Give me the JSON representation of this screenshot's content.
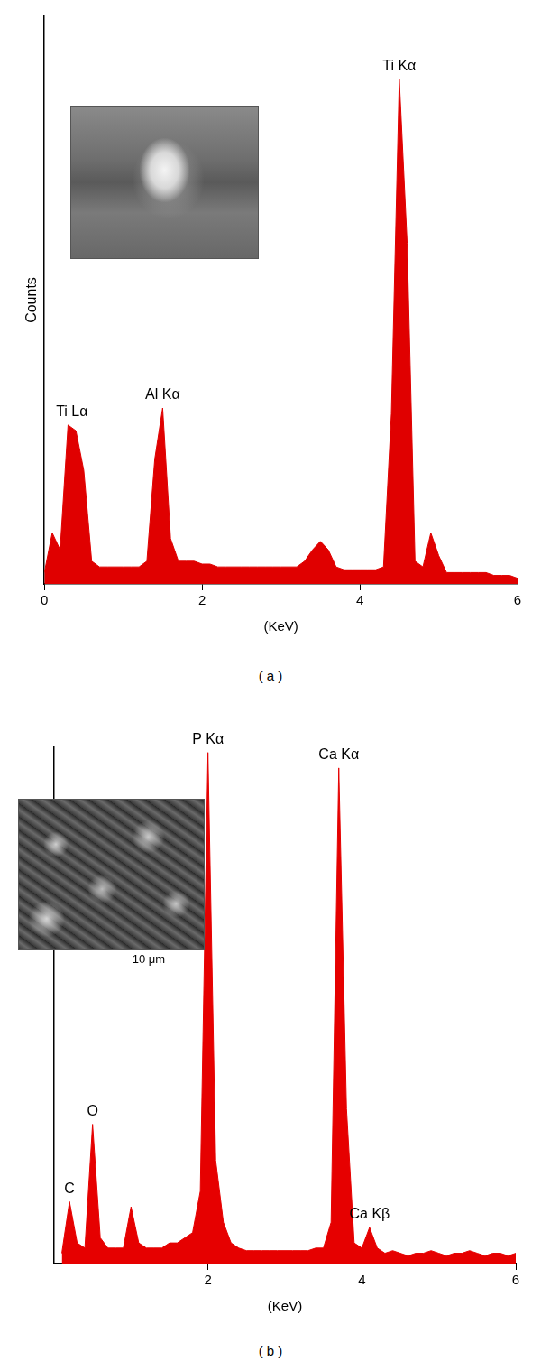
{
  "chart_data": [
    {
      "type": "line",
      "caption": "( a )",
      "x_label": "(KeV)",
      "y_label": "Counts",
      "color": "#e00000",
      "grid": false,
      "tick_labels": "x",
      "xlim": [
        0,
        6
      ],
      "xticks": [
        0,
        2,
        4,
        6
      ],
      "ylim": [
        0,
        100
      ],
      "x": [
        0,
        0.1,
        0.2,
        0.3,
        0.4,
        0.5,
        0.6,
        0.7,
        0.8,
        0.9,
        1,
        1.1,
        1.2,
        1.3,
        1.4,
        1.5,
        1.6,
        1.7,
        1.8,
        1.9,
        2,
        2.1,
        2.2,
        2.3,
        2.4,
        2.5,
        2.6,
        2.7,
        2.8,
        2.9,
        3,
        3.1,
        3.2,
        3.3,
        3.4,
        3.5,
        3.6,
        3.7,
        3.8,
        3.9,
        4,
        4.1,
        4.2,
        4.3,
        4.4,
        4.5,
        4.6,
        4.7,
        4.8,
        4.9,
        5,
        5.1,
        5.2,
        5.3,
        5.4,
        5.5,
        5.6,
        5.7,
        5.8,
        5.9,
        6
      ],
      "values": [
        2,
        9,
        6,
        28,
        27,
        20,
        4,
        3,
        3,
        3,
        3,
        3,
        3,
        4,
        22,
        31,
        8,
        4,
        4,
        4,
        3.5,
        3.5,
        3,
        3,
        3,
        3,
        3,
        3,
        3,
        3,
        3,
        3,
        3,
        4,
        6,
        7.5,
        6,
        3,
        2.5,
        2.5,
        2.5,
        2.5,
        2.5,
        3,
        30,
        89,
        60,
        4,
        3,
        9,
        5,
        2,
        2,
        2,
        2,
        2,
        2,
        1.5,
        1.5,
        1.5,
        1
      ],
      "annotations": [
        {
          "text": "Ti Lα",
          "x": 0.35
        },
        {
          "text": "Al Kα",
          "x": 1.5
        },
        {
          "text": "Ti Kα",
          "x": 4.5
        }
      ]
    },
    {
      "type": "line",
      "caption": "( b )",
      "x_label": "(KeV)",
      "color": "#e60000",
      "grid": false,
      "tick_labels": "x",
      "xlim": [
        0,
        6
      ],
      "xticks": [
        2,
        4,
        6
      ],
      "ylim": [
        0,
        100
      ],
      "inset_scale_bar": "10 μm",
      "x": [
        0.1,
        0.2,
        0.3,
        0.4,
        0.5,
        0.6,
        0.7,
        0.8,
        0.9,
        1,
        1.1,
        1.2,
        1.3,
        1.4,
        1.5,
        1.6,
        1.7,
        1.8,
        1.9,
        2,
        2.1,
        2.2,
        2.3,
        2.4,
        2.5,
        2.6,
        2.7,
        2.8,
        2.9,
        3,
        3.1,
        3.2,
        3.3,
        3.4,
        3.5,
        3.6,
        3.7,
        3.8,
        3.9,
        4,
        4.1,
        4.2,
        4.3,
        4.4,
        4.5,
        4.6,
        4.7,
        4.8,
        4.9,
        5,
        5.1,
        5.2,
        5.3,
        5.4,
        5.5,
        5.6,
        5.7,
        5.8,
        5.9,
        6
      ],
      "values": [
        2,
        12,
        4,
        3,
        27,
        5,
        3,
        3,
        3,
        11,
        4,
        3,
        3,
        3,
        4,
        4,
        5,
        6,
        14,
        99,
        20,
        8,
        4,
        3,
        2.5,
        2.5,
        2.5,
        2.5,
        2.5,
        2.5,
        2.5,
        2.5,
        2.5,
        3,
        3,
        8,
        96,
        30,
        4,
        3,
        7,
        3,
        2,
        2.5,
        2,
        1.5,
        2,
        2,
        2.5,
        2,
        1.5,
        2,
        2,
        2.5,
        2,
        1.5,
        2,
        2,
        1.5,
        2
      ],
      "annotations": [
        {
          "text": "C",
          "x": 0.2
        },
        {
          "text": "O",
          "x": 0.5
        },
        {
          "text": "P Kα",
          "x": 2.0
        },
        {
          "text": "Ca Kα",
          "x": 3.7
        },
        {
          "text": "Ca Kβ",
          "x": 4.1
        }
      ]
    }
  ]
}
